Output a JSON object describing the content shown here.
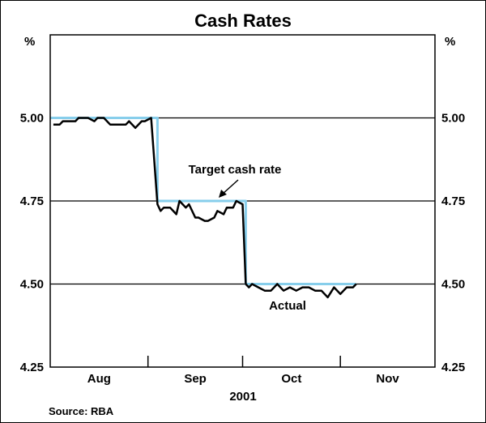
{
  "chart_data": {
    "type": "line",
    "title": "Cash Rates",
    "xlabel": "2001",
    "y_unit_left": "%",
    "y_unit_right": "%",
    "ylim": [
      4.25,
      5.25
    ],
    "yticks": [
      4.25,
      4.5,
      4.75,
      5.0
    ],
    "ytick_labels": [
      "4.25",
      "4.50",
      "4.75",
      "5.00"
    ],
    "months": [
      {
        "label": "Aug",
        "center": 15.5
      },
      {
        "label": "Sep",
        "center": 46
      },
      {
        "label": "Oct",
        "center": 76.5
      },
      {
        "label": "Nov",
        "center": 107
      }
    ],
    "month_boundaries": [
      31,
      61,
      92
    ],
    "xlim": [
      0,
      122
    ],
    "grid": "horizontal",
    "source": "Source: RBA",
    "annotations": {
      "target": "Target cash rate",
      "actual": "Actual"
    },
    "series": [
      {
        "name": "Target cash rate",
        "color": "#87CEEB",
        "step": true,
        "x": [
          0,
          34,
          34,
          62,
          62,
          97
        ],
        "y": [
          5.0,
          5.0,
          4.75,
          4.75,
          4.5,
          4.5
        ]
      },
      {
        "name": "Actual",
        "color": "#000000",
        "x": [
          1,
          3,
          4,
          6,
          8,
          9,
          10,
          12,
          14,
          15,
          17,
          19,
          20,
          22,
          24,
          25,
          27,
          29,
          30,
          32,
          34,
          35,
          36,
          38,
          40,
          41,
          43,
          44,
          46,
          47,
          49,
          50,
          52,
          53,
          55,
          56,
          58,
          59,
          61,
          62,
          63,
          64,
          66,
          68,
          70,
          72,
          74,
          76,
          78,
          80,
          82,
          84,
          86,
          88,
          90,
          92,
          94,
          96,
          97
        ],
        "y": [
          4.98,
          4.98,
          4.99,
          4.99,
          4.99,
          5.0,
          5.0,
          5.0,
          4.99,
          5.0,
          5.0,
          4.98,
          4.98,
          4.98,
          4.98,
          4.99,
          4.97,
          4.99,
          4.99,
          5.0,
          4.74,
          4.72,
          4.73,
          4.73,
          4.71,
          4.75,
          4.73,
          4.74,
          4.7,
          4.7,
          4.69,
          4.69,
          4.7,
          4.72,
          4.71,
          4.73,
          4.73,
          4.75,
          4.74,
          4.5,
          4.49,
          4.5,
          4.49,
          4.48,
          4.48,
          4.5,
          4.48,
          4.49,
          4.48,
          4.49,
          4.49,
          4.48,
          4.48,
          4.46,
          4.49,
          4.47,
          4.49,
          4.49,
          4.5
        ]
      }
    ]
  }
}
